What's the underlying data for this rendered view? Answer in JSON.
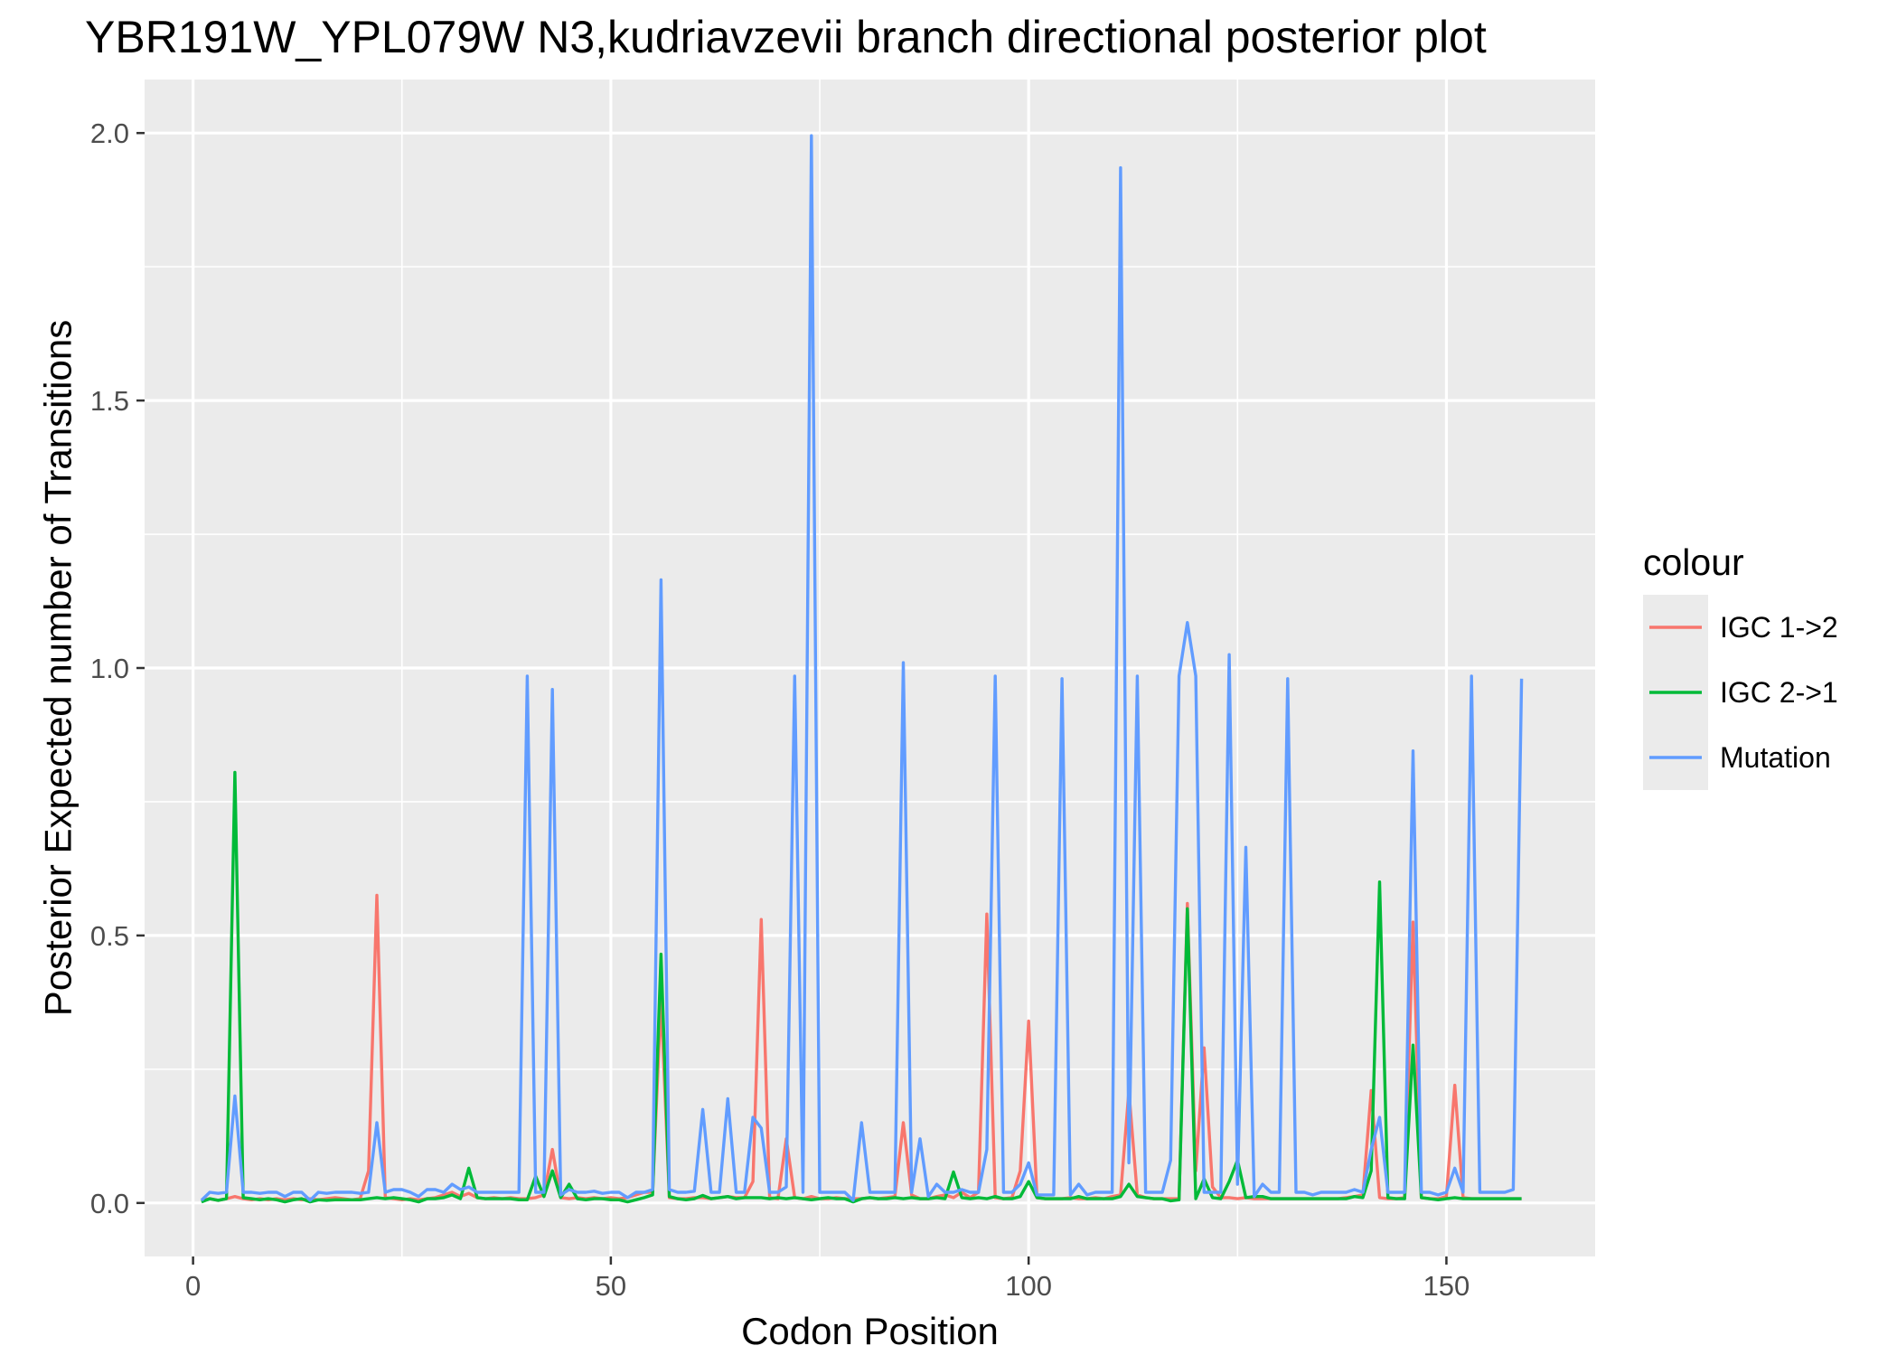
{
  "chart_data": {
    "type": "line",
    "title": "YBR191W_YPL079W N3,kudriavzevii branch directional posterior plot",
    "xlabel": "Codon Position",
    "ylabel": "Posterior Expected number of Transitions",
    "xlim": [
      -5.8,
      167.8
    ],
    "ylim": [
      -0.1,
      2.1
    ],
    "x_ticks": [
      0,
      50,
      100,
      150
    ],
    "x_tick_labels": [
      "0",
      "50",
      "100",
      "150"
    ],
    "y_ticks": [
      0.0,
      0.5,
      1.0,
      1.5,
      2.0
    ],
    "y_tick_labels": [
      "0.0",
      "0.5",
      "1.0",
      "1.5",
      "2.0"
    ],
    "grid": true,
    "legend": {
      "title": "colour",
      "position": "right"
    },
    "series": [
      {
        "name": "IGC 1->2",
        "color": "#F8766D",
        "x": [
          1,
          2,
          3,
          4,
          5,
          6,
          7,
          8,
          9,
          10,
          11,
          12,
          13,
          14,
          15,
          16,
          17,
          18,
          19,
          20,
          21,
          22,
          23,
          24,
          25,
          26,
          27,
          28,
          29,
          30,
          31,
          32,
          33,
          34,
          35,
          36,
          37,
          38,
          39,
          40,
          41,
          42,
          43,
          44,
          45,
          46,
          47,
          48,
          49,
          50,
          51,
          52,
          53,
          54,
          55,
          56,
          57,
          58,
          59,
          60,
          61,
          62,
          63,
          64,
          65,
          66,
          67,
          68,
          69,
          70,
          71,
          72,
          73,
          74,
          75,
          76,
          77,
          78,
          79,
          80,
          81,
          82,
          83,
          84,
          85,
          86,
          87,
          88,
          89,
          90,
          91,
          92,
          93,
          94,
          95,
          96,
          97,
          98,
          99,
          100,
          101,
          102,
          103,
          104,
          105,
          106,
          107,
          108,
          109,
          110,
          111,
          112,
          113,
          114,
          115,
          116,
          117,
          118,
          119,
          120,
          121,
          122,
          123,
          124,
          125,
          126,
          127,
          128,
          129,
          130,
          131,
          132,
          133,
          134,
          135,
          136,
          137,
          138,
          139,
          140,
          141,
          142,
          143,
          144,
          145,
          146,
          147,
          148,
          149,
          150,
          151,
          152,
          153,
          154,
          155,
          156,
          157,
          158,
          159
        ],
        "values": [
          0.005,
          0.008,
          0.005,
          0.008,
          0.012,
          0.008,
          0.006,
          0.008,
          0.006,
          0.008,
          0.006,
          0.008,
          0.006,
          0.008,
          0.006,
          0.008,
          0.01,
          0.008,
          0.006,
          0.008,
          0.06,
          0.575,
          0.01,
          0.008,
          0.006,
          0.008,
          0.006,
          0.008,
          0.01,
          0.015,
          0.02,
          0.012,
          0.018,
          0.01,
          0.008,
          0.01,
          0.008,
          0.01,
          0.008,
          0.008,
          0.01,
          0.015,
          0.1,
          0.01,
          0.008,
          0.01,
          0.008,
          0.01,
          0.008,
          0.01,
          0.008,
          0.01,
          0.015,
          0.02,
          0.02,
          0.38,
          0.01,
          0.008,
          0.008,
          0.01,
          0.01,
          0.008,
          0.01,
          0.012,
          0.01,
          0.01,
          0.04,
          0.53,
          0.01,
          0.008,
          0.12,
          0.01,
          0.008,
          0.012,
          0.008,
          0.008,
          0.01,
          0.008,
          0.008,
          0.008,
          0.01,
          0.008,
          0.01,
          0.012,
          0.15,
          0.015,
          0.008,
          0.008,
          0.012,
          0.015,
          0.01,
          0.02,
          0.01,
          0.02,
          0.54,
          0.01,
          0.008,
          0.01,
          0.06,
          0.34,
          0.01,
          0.008,
          0.008,
          0.008,
          0.01,
          0.008,
          0.008,
          0.01,
          0.008,
          0.012,
          0.015,
          0.21,
          0.015,
          0.01,
          0.008,
          0.008,
          0.008,
          0.008,
          0.56,
          0.06,
          0.29,
          0.03,
          0.01,
          0.01,
          0.008,
          0.01,
          0.008,
          0.008,
          0.008,
          0.008,
          0.008,
          0.008,
          0.008,
          0.008,
          0.008,
          0.008,
          0.008,
          0.01,
          0.012,
          0.015,
          0.21,
          0.01,
          0.008,
          0.008,
          0.01,
          0.525,
          0.01,
          0.008,
          0.008,
          0.012,
          0.22,
          0.01,
          0.008,
          0.008,
          0.008,
          0.008,
          0.008,
          0.008,
          0.008
        ],
        "style": "solid"
      },
      {
        "name": "IGC 2->1",
        "color": "#00BA38",
        "x": [
          1,
          2,
          3,
          4,
          5,
          6,
          7,
          8,
          9,
          10,
          11,
          12,
          13,
          14,
          15,
          16,
          17,
          18,
          19,
          20,
          21,
          22,
          23,
          24,
          25,
          26,
          27,
          28,
          29,
          30,
          31,
          32,
          33,
          34,
          35,
          36,
          37,
          38,
          39,
          40,
          41,
          42,
          43,
          44,
          45,
          46,
          47,
          48,
          49,
          50,
          51,
          52,
          53,
          54,
          55,
          56,
          57,
          58,
          59,
          60,
          61,
          62,
          63,
          64,
          65,
          66,
          67,
          68,
          69,
          70,
          71,
          72,
          73,
          74,
          75,
          76,
          77,
          78,
          79,
          80,
          81,
          82,
          83,
          84,
          85,
          86,
          87,
          88,
          89,
          90,
          91,
          92,
          93,
          94,
          95,
          96,
          97,
          98,
          99,
          100,
          101,
          102,
          103,
          104,
          105,
          106,
          107,
          108,
          109,
          110,
          111,
          112,
          113,
          114,
          115,
          116,
          117,
          118,
          119,
          120,
          121,
          122,
          123,
          124,
          125,
          126,
          127,
          128,
          129,
          130,
          131,
          132,
          133,
          134,
          135,
          136,
          137,
          138,
          139,
          140,
          141,
          142,
          143,
          144,
          145,
          146,
          147,
          148,
          149,
          150,
          151,
          152,
          153,
          154,
          155,
          156,
          157,
          158,
          159
        ],
        "values": [
          0.002,
          0.008,
          0.005,
          0.008,
          0.805,
          0.01,
          0.008,
          0.006,
          0.008,
          0.006,
          0.002,
          0.006,
          0.008,
          0.002,
          0.006,
          0.005,
          0.006,
          0.006,
          0.006,
          0.006,
          0.008,
          0.01,
          0.008,
          0.01,
          0.008,
          0.006,
          0.002,
          0.008,
          0.008,
          0.01,
          0.015,
          0.008,
          0.065,
          0.01,
          0.008,
          0.008,
          0.008,
          0.008,
          0.006,
          0.006,
          0.05,
          0.012,
          0.06,
          0.01,
          0.035,
          0.008,
          0.006,
          0.008,
          0.008,
          0.006,
          0.006,
          0.002,
          0.006,
          0.01,
          0.015,
          0.465,
          0.012,
          0.008,
          0.006,
          0.008,
          0.014,
          0.008,
          0.01,
          0.012,
          0.008,
          0.01,
          0.01,
          0.01,
          0.008,
          0.01,
          0.008,
          0.01,
          0.008,
          0.006,
          0.008,
          0.01,
          0.008,
          0.008,
          0.002,
          0.008,
          0.01,
          0.008,
          0.008,
          0.01,
          0.008,
          0.01,
          0.008,
          0.008,
          0.01,
          0.008,
          0.058,
          0.01,
          0.008,
          0.01,
          0.008,
          0.012,
          0.008,
          0.008,
          0.012,
          0.04,
          0.01,
          0.008,
          0.008,
          0.008,
          0.008,
          0.012,
          0.008,
          0.008,
          0.008,
          0.008,
          0.012,
          0.035,
          0.012,
          0.01,
          0.008,
          0.008,
          0.004,
          0.006,
          0.55,
          0.008,
          0.045,
          0.01,
          0.008,
          0.04,
          0.08,
          0.01,
          0.012,
          0.012,
          0.008,
          0.008,
          0.008,
          0.008,
          0.008,
          0.008,
          0.008,
          0.008,
          0.008,
          0.008,
          0.012,
          0.01,
          0.06,
          0.6,
          0.01,
          0.008,
          0.008,
          0.295,
          0.01,
          0.008,
          0.006,
          0.008,
          0.01,
          0.008,
          0.008,
          0.008,
          0.008,
          0.008,
          0.008,
          0.008,
          0.008
        ],
        "style": "solid"
      },
      {
        "name": "Mutation",
        "color": "#619CFF",
        "x": [
          1,
          2,
          3,
          4,
          5,
          6,
          7,
          8,
          9,
          10,
          11,
          12,
          13,
          14,
          15,
          16,
          17,
          18,
          19,
          20,
          21,
          22,
          23,
          24,
          25,
          26,
          27,
          28,
          29,
          30,
          31,
          32,
          33,
          34,
          35,
          36,
          37,
          38,
          39,
          40,
          41,
          42,
          43,
          44,
          45,
          46,
          47,
          48,
          49,
          50,
          51,
          52,
          53,
          54,
          55,
          56,
          57,
          58,
          59,
          60,
          61,
          62,
          63,
          64,
          65,
          66,
          67,
          68,
          69,
          70,
          71,
          72,
          73,
          74,
          75,
          76,
          77,
          78,
          79,
          80,
          81,
          82,
          83,
          84,
          85,
          86,
          87,
          88,
          89,
          90,
          91,
          92,
          93,
          94,
          95,
          96,
          97,
          98,
          99,
          100,
          101,
          102,
          103,
          104,
          105,
          106,
          107,
          108,
          109,
          110,
          111,
          112,
          113,
          114,
          115,
          116,
          117,
          118,
          119,
          120,
          121,
          122,
          123,
          124,
          125,
          126,
          127,
          128,
          129,
          130,
          131,
          132,
          133,
          134,
          135,
          136,
          137,
          138,
          139,
          140,
          141,
          142,
          143,
          144,
          145,
          146,
          147,
          148,
          149,
          150,
          151,
          152,
          153,
          154,
          155,
          156,
          157,
          158,
          159
        ],
        "values": [
          0.005,
          0.02,
          0.018,
          0.02,
          0.2,
          0.02,
          0.02,
          0.018,
          0.02,
          0.02,
          0.012,
          0.02,
          0.02,
          0.005,
          0.02,
          0.018,
          0.02,
          0.02,
          0.02,
          0.018,
          0.02,
          0.15,
          0.02,
          0.025,
          0.025,
          0.02,
          0.012,
          0.025,
          0.025,
          0.02,
          0.035,
          0.025,
          0.03,
          0.02,
          0.02,
          0.02,
          0.02,
          0.02,
          0.02,
          0.985,
          0.02,
          0.02,
          0.96,
          0.015,
          0.025,
          0.02,
          0.02,
          0.022,
          0.018,
          0.02,
          0.02,
          0.01,
          0.02,
          0.02,
          0.025,
          1.165,
          0.025,
          0.02,
          0.02,
          0.022,
          0.175,
          0.02,
          0.02,
          0.195,
          0.02,
          0.02,
          0.16,
          0.14,
          0.02,
          0.02,
          0.03,
          0.985,
          0.02,
          1.995,
          0.02,
          0.02,
          0.02,
          0.02,
          0.005,
          0.15,
          0.02,
          0.02,
          0.02,
          0.02,
          1.01,
          0.02,
          0.12,
          0.012,
          0.035,
          0.02,
          0.02,
          0.025,
          0.02,
          0.02,
          0.1,
          0.985,
          0.02,
          0.02,
          0.035,
          0.075,
          0.015,
          0.015,
          0.015,
          0.98,
          0.015,
          0.035,
          0.015,
          0.02,
          0.02,
          0.02,
          1.935,
          0.075,
          0.985,
          0.02,
          0.02,
          0.02,
          0.08,
          0.985,
          1.085,
          0.985,
          0.02,
          0.02,
          0.02,
          1.025,
          0.035,
          0.665,
          0.012,
          0.035,
          0.02,
          0.02,
          0.98,
          0.02,
          0.02,
          0.015,
          0.02,
          0.02,
          0.02,
          0.02,
          0.025,
          0.02,
          0.1,
          0.16,
          0.02,
          0.02,
          0.02,
          0.845,
          0.02,
          0.02,
          0.015,
          0.02,
          0.065,
          0.02,
          0.985,
          0.02,
          0.02,
          0.02,
          0.02,
          0.025,
          0.98
        ],
        "style": "solid"
      }
    ]
  }
}
